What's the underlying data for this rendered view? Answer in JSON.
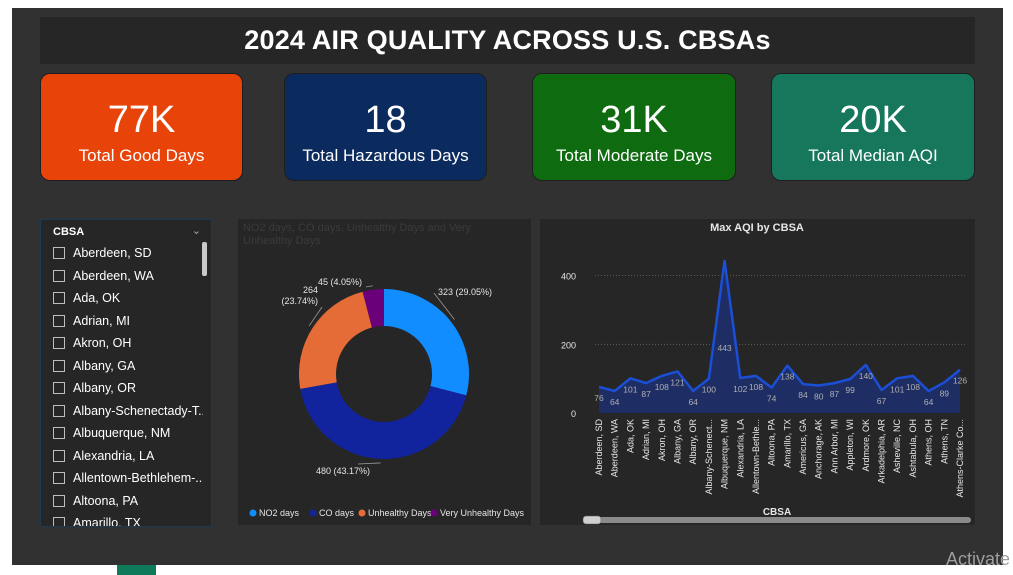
{
  "dashboard": {
    "title": "2024 AIR QUALITY ACROSS U.S. CBSAs"
  },
  "kpis": [
    {
      "value": "77K",
      "label": "Total Good Days",
      "color": "#e8440a"
    },
    {
      "value": "18",
      "label": "Total Hazardous Days",
      "color": "#0b2a5e"
    },
    {
      "value": "31K",
      "label": "Total Moderate Days",
      "color": "#0f6b10"
    },
    {
      "value": "20K",
      "label": "Total Median AQI",
      "color": "#16775c"
    }
  ],
  "slicer": {
    "title": "CBSA",
    "items": [
      "Aberdeen, SD",
      "Aberdeen, WA",
      "Ada, OK",
      "Adrian, MI",
      "Akron, OH",
      "Albany, GA",
      "Albany, OR",
      "Albany-Schenectady-T...",
      "Albuquerque, NM",
      "Alexandria, LA",
      "Allentown-Bethlehem-...",
      "Altoona, PA",
      "Amarillo, TX"
    ]
  },
  "donut": {
    "title": "NO2 days, CO days, Unhealthy Days and Very Unhealthy Days",
    "labels": [
      "323 (29.05%)",
      "480 (43.17%)",
      "264 (23.74%)",
      "45 (4.05%)"
    ],
    "legend": [
      "NO2 days",
      "CO days",
      "Unhealthy Days",
      "Very Unhealthy Days"
    ]
  },
  "line": {
    "title": "Max AQI by CBSA",
    "xlabel": "CBSA",
    "ytick_labels": [
      "0",
      "200",
      "400"
    ]
  },
  "chart_data": [
    {
      "type": "pie",
      "title": "NO2 days, CO days, Unhealthy Days and Very Unhealthy Days",
      "categories": [
        "NO2 days",
        "CO days",
        "Unhealthy Days",
        "Very Unhealthy Days"
      ],
      "values": [
        323,
        480,
        264,
        45
      ],
      "percent": [
        29.05,
        43.17,
        23.74,
        4.05
      ],
      "colors": [
        "#118dff",
        "#12239e",
        "#e66c37",
        "#6b007b"
      ],
      "donut": true,
      "legend": "bottom"
    },
    {
      "type": "area",
      "title": "Max AQI by CBSA",
      "xlabel": "CBSA",
      "ylabel": "",
      "categories": [
        "Aberdeen, SD",
        "Aberdeen, WA",
        "Ada, OK",
        "Adrian, MI",
        "Akron, OH",
        "Albany, GA",
        "Albany, OR",
        "Albany-Schenect...",
        "Albuquerque, NM",
        "Alexandria, LA",
        "Allentown-Bethle...",
        "Altoona, PA",
        "Amarillo, TX",
        "Americus, GA",
        "Anchorage, AK",
        "Ann Arbor, MI",
        "Appleton, WI",
        "Ardmore, OK",
        "Arkadelphia, AR",
        "Asheville, NC",
        "Ashtabula, OH",
        "Athens, OH",
        "Athens, TN",
        "Athens-Clarke Co..."
      ],
      "values": [
        76,
        64,
        101,
        87,
        108,
        121,
        64,
        100,
        443,
        102,
        108,
        74,
        138,
        84,
        80,
        87,
        99,
        140,
        67,
        101,
        108,
        64,
        89,
        126
      ],
      "ylim": [
        0,
        460
      ],
      "yticks": [
        0,
        200,
        400
      ],
      "grid": true,
      "color": "#1a4fd6"
    }
  ]
}
